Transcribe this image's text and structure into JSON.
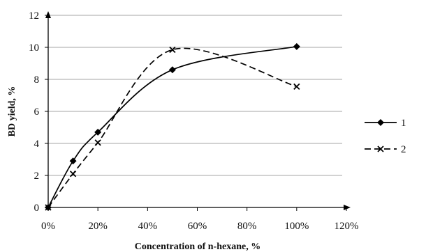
{
  "chart_data": {
    "type": "line",
    "title": "",
    "xlabel": "Concentration of n-hexane, %",
    "ylabel": "BD yield,  %",
    "xlim": [
      0,
      1.2
    ],
    "ylim": [
      0,
      12
    ],
    "x_ticks": [
      0,
      0.2,
      0.4,
      0.6,
      0.8,
      1.0,
      1.2
    ],
    "x_tick_labels": [
      "0%",
      "20%",
      "40%",
      "60%",
      "80%",
      "100%",
      "120%"
    ],
    "y_ticks": [
      0,
      2,
      4,
      6,
      8,
      10,
      12
    ],
    "y_tick_labels": [
      "0",
      "2",
      "4",
      "6",
      "8",
      "10",
      "12"
    ],
    "grid": "horizontal",
    "legend_position": "right",
    "series": [
      {
        "name": "1",
        "x": [
          0,
          0.1,
          0.2,
          0.5,
          1.0
        ],
        "y": [
          0,
          2.9,
          4.7,
          8.6,
          10.05
        ],
        "marker": "diamond",
        "line_style": "solid",
        "smooth": true,
        "color": "#000000"
      },
      {
        "name": "2",
        "x": [
          0,
          0.1,
          0.2,
          0.5,
          1.0
        ],
        "y": [
          0,
          2.1,
          4.05,
          9.85,
          7.55
        ],
        "marker": "x",
        "line_style": "dashed",
        "smooth": true,
        "color": "#000000"
      }
    ]
  }
}
